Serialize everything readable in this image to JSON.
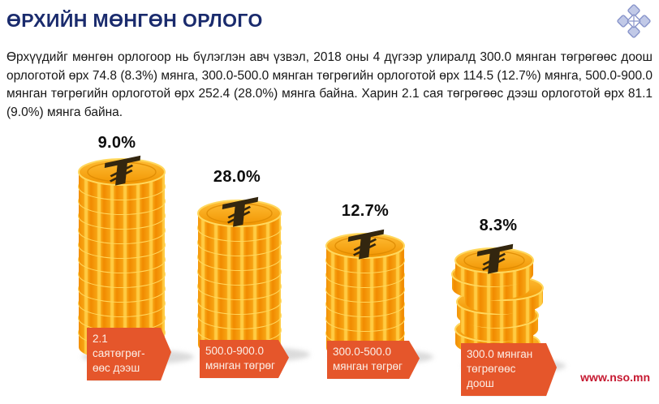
{
  "header": {
    "title": "ӨРХИЙН МӨНГӨН ОРЛОГО",
    "logo": "nso-emblem-icon"
  },
  "paragraph": "Өрхүүдийг мөнгөн орлогоор нь бүлэглэн авч үзвэл, 2018 оны 4 дүгээр улиралд 300.0 мянган төгрөгөөс доош орлоготой өрх 74.8 (8.3%) мянга, 300.0-500.0 мянган төгрөгийн орлоготой өрх 114.5 (12.7%) мянга, 500.0-900.0 мянган төгрөгийн орлоготой өрх 252.4 (28.0%) мянга байна. Харин 2.1 сая төгрөгөөс дээш орлоготой өрх 81.1 (9.0%) мянга байна.",
  "footer": {
    "website": "www.nso.mn"
  },
  "chart_data": {
    "type": "bar",
    "bar_style": "coin-stack",
    "categories": [
      "2.1 саятөгрөг-өөс дээш",
      "500.0-900.0 мянган төгрөг",
      "300.0-500.0 мянган төгрөг",
      "300.0 мянган төгрөгөөс доош"
    ],
    "category_lines": [
      [
        "2.1 саятөгрөг-",
        "өөс дээш"
      ],
      [
        "500.0-900.0",
        "мянган төгрөг"
      ],
      [
        "300.0-500.0",
        "мянган төгрөг"
      ],
      [
        "300.0 мянган",
        "төгрөгөөс",
        "доош"
      ]
    ],
    "values": [
      9.0,
      28.0,
      12.7,
      8.3
    ],
    "value_labels": [
      "9.0%",
      "28.0%",
      "12.7%",
      "8.3%"
    ],
    "households_thousands": [
      81.1,
      252.4,
      114.5,
      74.8
    ],
    "unit": "%",
    "coin_symbol": "₮",
    "coins_per_stack": [
      12,
      9,
      7,
      7
    ],
    "legend": "none",
    "grid": false
  },
  "colors": {
    "title": "#1A2B6D",
    "label_box": "#E5562B",
    "website": "#C61A32",
    "coin_face": "#F6A01E",
    "coin_side": "#F18A00",
    "coin_ridge": "#FFCB43",
    "coin_symbol": "#33260F",
    "logo": "#8A99D0"
  }
}
